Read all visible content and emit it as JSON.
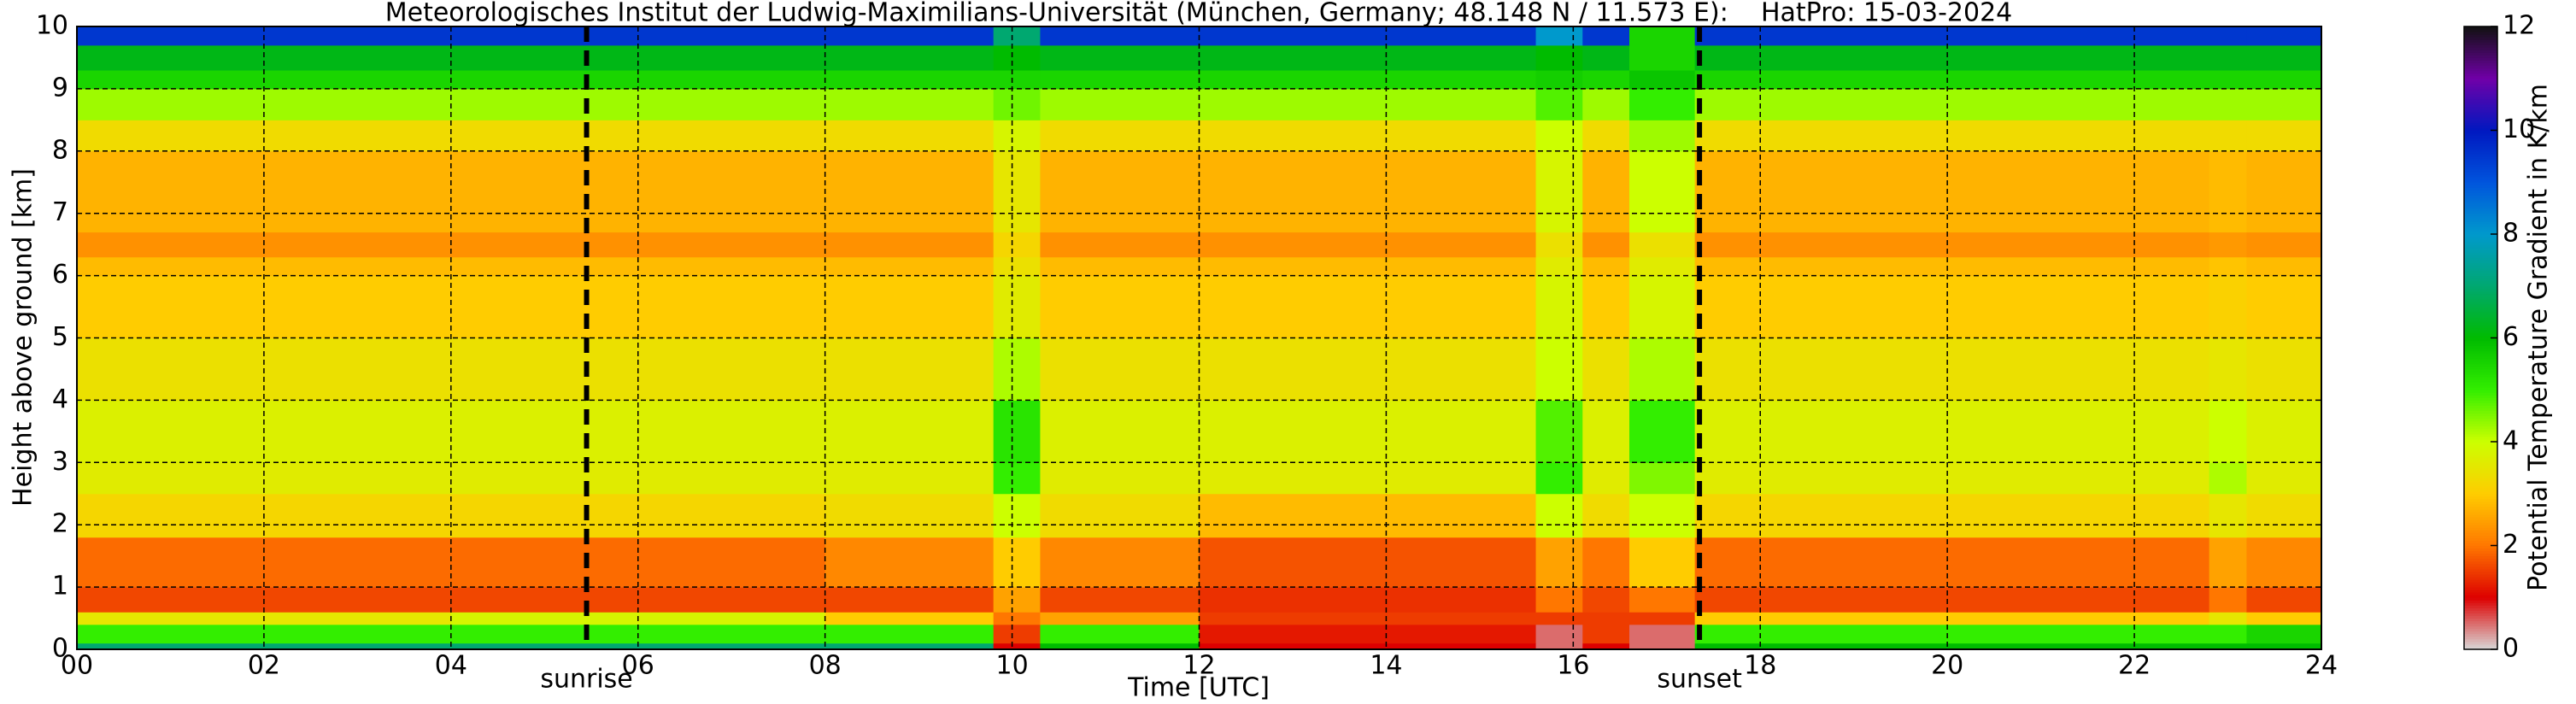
{
  "chart_data": {
    "type": "heatmap",
    "title": "Meteorologisches Institut der Ludwig-Maximilians-Universität (München, Germany; 48.148 N / 11.573 E):    HatPro: 15-03-2024",
    "xlabel": "Time [UTC]",
    "ylabel": "Height above ground [km]",
    "zlabel": "Potential Temperature Gradient in K/km",
    "xlim": [
      0,
      24
    ],
    "ylim": [
      0,
      10
    ],
    "zlim": [
      0,
      12
    ],
    "xticks": [
      {
        "value": 0,
        "label": "00"
      },
      {
        "value": 2,
        "label": "02"
      },
      {
        "value": 4,
        "label": "04"
      },
      {
        "value": 6,
        "label": "06"
      },
      {
        "value": 8,
        "label": "08"
      },
      {
        "value": 10,
        "label": "10"
      },
      {
        "value": 12,
        "label": "12"
      },
      {
        "value": 14,
        "label": "14"
      },
      {
        "value": 16,
        "label": "16"
      },
      {
        "value": 18,
        "label": "18"
      },
      {
        "value": 20,
        "label": "20"
      },
      {
        "value": 22,
        "label": "22"
      },
      {
        "value": 24,
        "label": "24"
      }
    ],
    "yticks": [
      0,
      1,
      2,
      3,
      4,
      5,
      6,
      7,
      8,
      9,
      10
    ],
    "zticks": [
      0,
      2,
      4,
      6,
      8,
      10,
      12
    ],
    "grid": true,
    "colormap": [
      "#d8d8d8",
      "#dd0000",
      "#ff7700",
      "#ffcc00",
      "#ccff00",
      "#33ee00",
      "#00bb00",
      "#00a870",
      "#0099cc",
      "#0055dd",
      "#0018c0",
      "#7000a8",
      "#111111"
    ],
    "annotations": [
      {
        "text": "sunrise",
        "x": 5.45
      },
      {
        "text": "sunset",
        "x": 17.35
      }
    ],
    "xbins": [
      0,
      4,
      8,
      9.8,
      10.3,
      12,
      15.6,
      16.1,
      16.6,
      17.3,
      22.8,
      23.2,
      24
    ],
    "ybins": [
      0,
      0.1,
      0.4,
      0.6,
      1,
      1.8,
      2.5,
      3,
      4,
      5,
      6,
      6.3,
      6.7,
      8,
      8.5,
      9,
      9.3,
      9.7,
      10
    ],
    "z": [
      [
        7,
        7,
        7,
        1,
        6,
        1,
        0.5,
        1,
        0.5,
        6,
        6,
        6
      ],
      [
        5,
        5,
        5,
        1.5,
        5,
        1.2,
        0.5,
        1.5,
        0.5,
        5,
        5,
        5.5
      ],
      [
        3.5,
        3.8,
        3,
        2,
        2.5,
        1.5,
        1.5,
        1.5,
        1.5,
        3,
        3.5,
        3
      ],
      [
        1.6,
        1.6,
        1.6,
        2.5,
        1.6,
        1.4,
        2,
        1.6,
        2,
        1.6,
        2,
        1.6
      ],
      [
        1.9,
        1.9,
        2.2,
        3,
        2.2,
        1.7,
        2.5,
        2,
        3,
        1.9,
        2.5,
        2.2
      ],
      [
        3.2,
        3.2,
        3.3,
        4,
        3.3,
        2.8,
        4,
        3.3,
        4,
        3.2,
        3.5,
        3.3
      ],
      [
        3.6,
        3.6,
        3.6,
        5,
        3.6,
        3.6,
        5,
        3.6,
        4.5,
        3.6,
        4.2,
        3.6
      ],
      [
        3.7,
        3.7,
        3.7,
        5.2,
        3.7,
        3.7,
        4.8,
        3.7,
        5,
        3.7,
        4,
        3.7
      ],
      [
        3.4,
        3.4,
        3.4,
        4.2,
        3.4,
        3.4,
        4,
        3.4,
        4.2,
        3.4,
        3.5,
        3.4
      ],
      [
        3,
        3,
        3,
        3.6,
        3,
        3,
        3.8,
        3,
        3.8,
        3,
        3.1,
        3
      ],
      [
        2.8,
        2.8,
        2.8,
        3.4,
        2.8,
        2.8,
        3.6,
        2.8,
        3.6,
        2.8,
        2.9,
        2.8
      ],
      [
        2.3,
        2.3,
        2.3,
        3.2,
        2.3,
        2.3,
        3.4,
        2.3,
        3.4,
        2.3,
        2.4,
        2.3
      ],
      [
        2.7,
        2.7,
        2.7,
        3.5,
        2.7,
        2.7,
        3.8,
        2.7,
        4,
        2.7,
        2.8,
        2.7
      ],
      [
        3.3,
        3.3,
        3.3,
        3.8,
        3.3,
        3.3,
        4,
        3.3,
        4.3,
        3.3,
        3.3,
        3.3
      ],
      [
        4.3,
        4.3,
        4.3,
        4.6,
        4.3,
        4.3,
        4.8,
        4.3,
        5,
        4.3,
        4.3,
        4.3
      ],
      [
        5.5,
        5.5,
        5.5,
        5.5,
        5.5,
        5.5,
        5.6,
        5.5,
        5.8,
        5.5,
        5.5,
        5.5
      ],
      [
        6.2,
        6.2,
        6.2,
        6,
        6.2,
        6.2,
        6,
        6.2,
        5.5,
        6.2,
        6.2,
        6.2
      ],
      [
        9.5,
        9.5,
        9.5,
        7,
        9.5,
        9.5,
        8,
        9.5,
        5.5,
        9.5,
        9.5,
        9.5
      ]
    ]
  }
}
